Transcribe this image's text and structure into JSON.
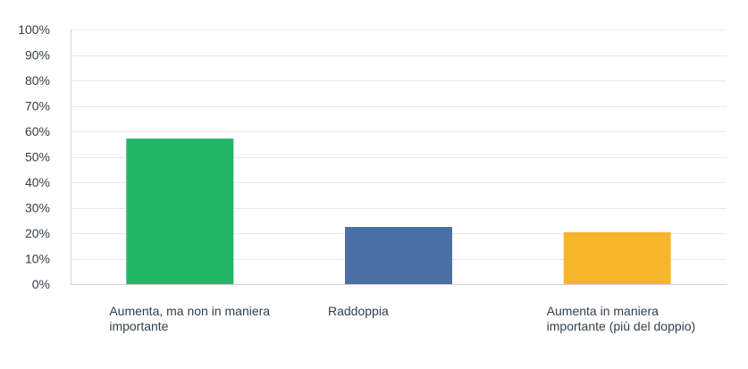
{
  "chart_data": {
    "type": "bar",
    "title": "",
    "xlabel": "",
    "ylabel": "",
    "categories": [
      "Aumenta, ma non in maniera importante",
      "Raddoppia",
      "Aumenta in maniera importante (più del doppio)"
    ],
    "values": [
      57.14,
      22.45,
      20.41
    ],
    "colors": [
      "#21b665",
      "#4a6fa5",
      "#f7b52c"
    ],
    "ylim": [
      0,
      100
    ],
    "yticks": [
      0,
      10,
      20,
      30,
      40,
      50,
      60,
      70,
      80,
      90,
      100
    ],
    "ytick_labels": [
      "0%",
      "10%",
      "20%",
      "30%",
      "40%",
      "50%",
      "60%",
      "70%",
      "80%",
      "90%",
      "100%"
    ],
    "grid": true,
    "legend": "none"
  }
}
